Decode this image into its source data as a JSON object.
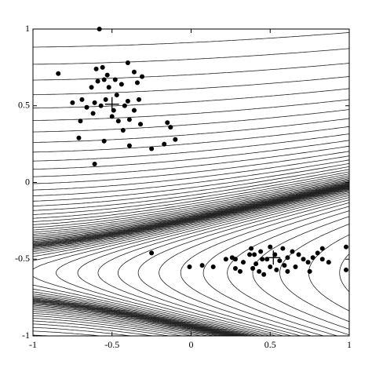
{
  "chart_data": {
    "type": "scatter",
    "xlim": [
      -1,
      1
    ],
    "ylim": [
      -1,
      1
    ],
    "xticks": [
      -1,
      -0.5,
      0,
      0.5,
      1
    ],
    "yticks": [
      -1,
      -0.5,
      0,
      0.5,
      1
    ],
    "series": [
      {
        "color": "#000000",
        "marker": "dot",
        "x": [
          -0.58,
          -0.84,
          -0.6,
          -0.56,
          -0.4,
          -0.53,
          -0.36,
          -0.59,
          -0.55,
          -0.48,
          -0.31,
          -0.63,
          -0.52,
          -0.44,
          -0.34,
          -0.75,
          -0.69,
          -0.61,
          -0.54,
          -0.47,
          -0.4,
          -0.33,
          -0.66,
          -0.57,
          -0.49,
          -0.42,
          -0.36,
          -0.7,
          -0.62,
          -0.5,
          -0.46,
          -0.39,
          -0.32,
          -0.15,
          -0.13,
          -0.71,
          -0.55,
          -0.43,
          -0.39,
          -0.17,
          -0.25,
          -0.61,
          -0.1
        ],
        "y": [
          1.0,
          0.71,
          0.74,
          0.75,
          0.78,
          0.7,
          0.72,
          0.66,
          0.67,
          0.67,
          0.69,
          0.62,
          0.62,
          0.64,
          0.65,
          0.52,
          0.54,
          0.52,
          0.54,
          0.57,
          0.53,
          0.54,
          0.49,
          0.5,
          0.47,
          0.5,
          0.47,
          0.4,
          0.45,
          0.43,
          0.4,
          0.41,
          0.38,
          0.39,
          0.36,
          0.29,
          0.27,
          0.34,
          0.24,
          0.25,
          0.22,
          0.12,
          0.28
        ]
      },
      {
        "color": "#000000",
        "marker": "dot",
        "x": [
          -0.25,
          -0.01,
          0.07,
          0.14,
          0.22,
          0.26,
          0.28,
          0.38,
          0.4,
          0.44,
          0.48,
          0.41,
          0.43,
          0.46,
          0.5,
          0.53,
          0.56,
          0.58,
          0.61,
          0.64,
          0.68,
          0.71,
          0.74,
          0.77,
          0.8,
          0.83,
          0.87,
          0.98,
          0.45,
          0.33,
          0.39,
          0.54,
          0.59,
          0.66,
          0.75,
          0.5,
          0.28,
          0.98,
          0.31,
          0.37,
          0.61,
          0.83
        ],
        "y": [
          -0.46,
          -0.55,
          -0.54,
          -0.55,
          -0.5,
          -0.49,
          -0.5,
          -0.43,
          -0.47,
          -0.45,
          -0.5,
          -0.53,
          -0.58,
          -0.6,
          -0.55,
          -0.47,
          -0.51,
          -0.43,
          -0.49,
          -0.45,
          -0.47,
          -0.5,
          -0.52,
          -0.49,
          -0.46,
          -0.5,
          -0.52,
          -0.57,
          -0.5,
          -0.52,
          -0.56,
          -0.57,
          -0.54,
          -0.55,
          -0.58,
          -0.42,
          -0.56,
          -0.42,
          -0.58,
          -0.47,
          -0.58,
          -0.43
        ]
      },
      {
        "color": "#000000",
        "marker": "plus",
        "x": [
          -0.5,
          0.52
        ],
        "y": [
          0.51,
          -0.49
        ]
      }
    ]
  }
}
